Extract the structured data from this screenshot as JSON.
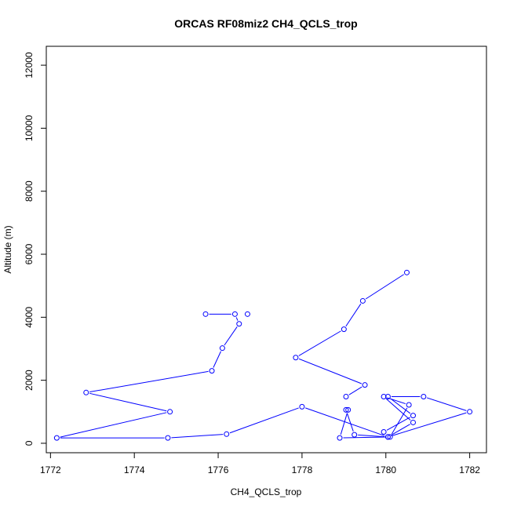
{
  "chart_data": {
    "type": "line",
    "title": "ORCAS RF08miz2 CH4_QCLS_trop",
    "xlabel": "CH4_QCLS_trop",
    "ylabel": "Altitude (m)",
    "xlim": [
      1771.9,
      1782.4
    ],
    "ylim": [
      -300,
      12600
    ],
    "xticks": [
      1772,
      1774,
      1776,
      1778,
      1780,
      1782
    ],
    "yticks": [
      0,
      2000,
      4000,
      6000,
      8000,
      10000,
      12000
    ],
    "colors": {
      "series": "#0000ff",
      "axis": "#000000",
      "background": "#ffffff"
    },
    "series": [
      {
        "segments": [
          [
            {
              "x": 1780.5,
              "y": 5420
            },
            {
              "x": 1779.45,
              "y": 4520
            },
            {
              "x": 1779.0,
              "y": 3620
            },
            {
              "x": 1777.85,
              "y": 2720
            },
            {
              "x": 1779.5,
              "y": 1850
            },
            {
              "x": 1779.05,
              "y": 1480
            }
          ],
          [
            {
              "x": 1779.05,
              "y": 1060
            },
            {
              "x": 1779.25,
              "y": 270
            },
            {
              "x": 1780.05,
              "y": 200
            },
            {
              "x": 1780.65,
              "y": 660
            },
            {
              "x": 1779.95,
              "y": 1480
            },
            {
              "x": 1780.55,
              "y": 1220
            },
            {
              "x": 1780.1,
              "y": 200
            },
            {
              "x": 1778.9,
              "y": 170
            },
            {
              "x": 1779.1,
              "y": 1060
            }
          ],
          [
            {
              "x": 1779.95,
              "y": 360
            },
            {
              "x": 1780.65,
              "y": 880
            },
            {
              "x": 1780.05,
              "y": 1480
            },
            {
              "x": 1780.9,
              "y": 1480
            },
            {
              "x": 1782.0,
              "y": 1000
            },
            {
              "x": 1780.05,
              "y": 200
            },
            {
              "x": 1778.0,
              "y": 1160
            },
            {
              "x": 1776.2,
              "y": 290
            },
            {
              "x": 1774.8,
              "y": 170
            },
            {
              "x": 1772.15,
              "y": 170
            },
            {
              "x": 1774.85,
              "y": 1000
            },
            {
              "x": 1772.85,
              "y": 1610
            },
            {
              "x": 1775.85,
              "y": 2300
            },
            {
              "x": 1776.1,
              "y": 3020
            },
            {
              "x": 1776.5,
              "y": 3790
            },
            {
              "x": 1776.4,
              "y": 4100
            },
            {
              "x": 1775.7,
              "y": 4100
            }
          ],
          [
            {
              "x": 1776.7,
              "y": 4100
            }
          ]
        ]
      }
    ]
  }
}
